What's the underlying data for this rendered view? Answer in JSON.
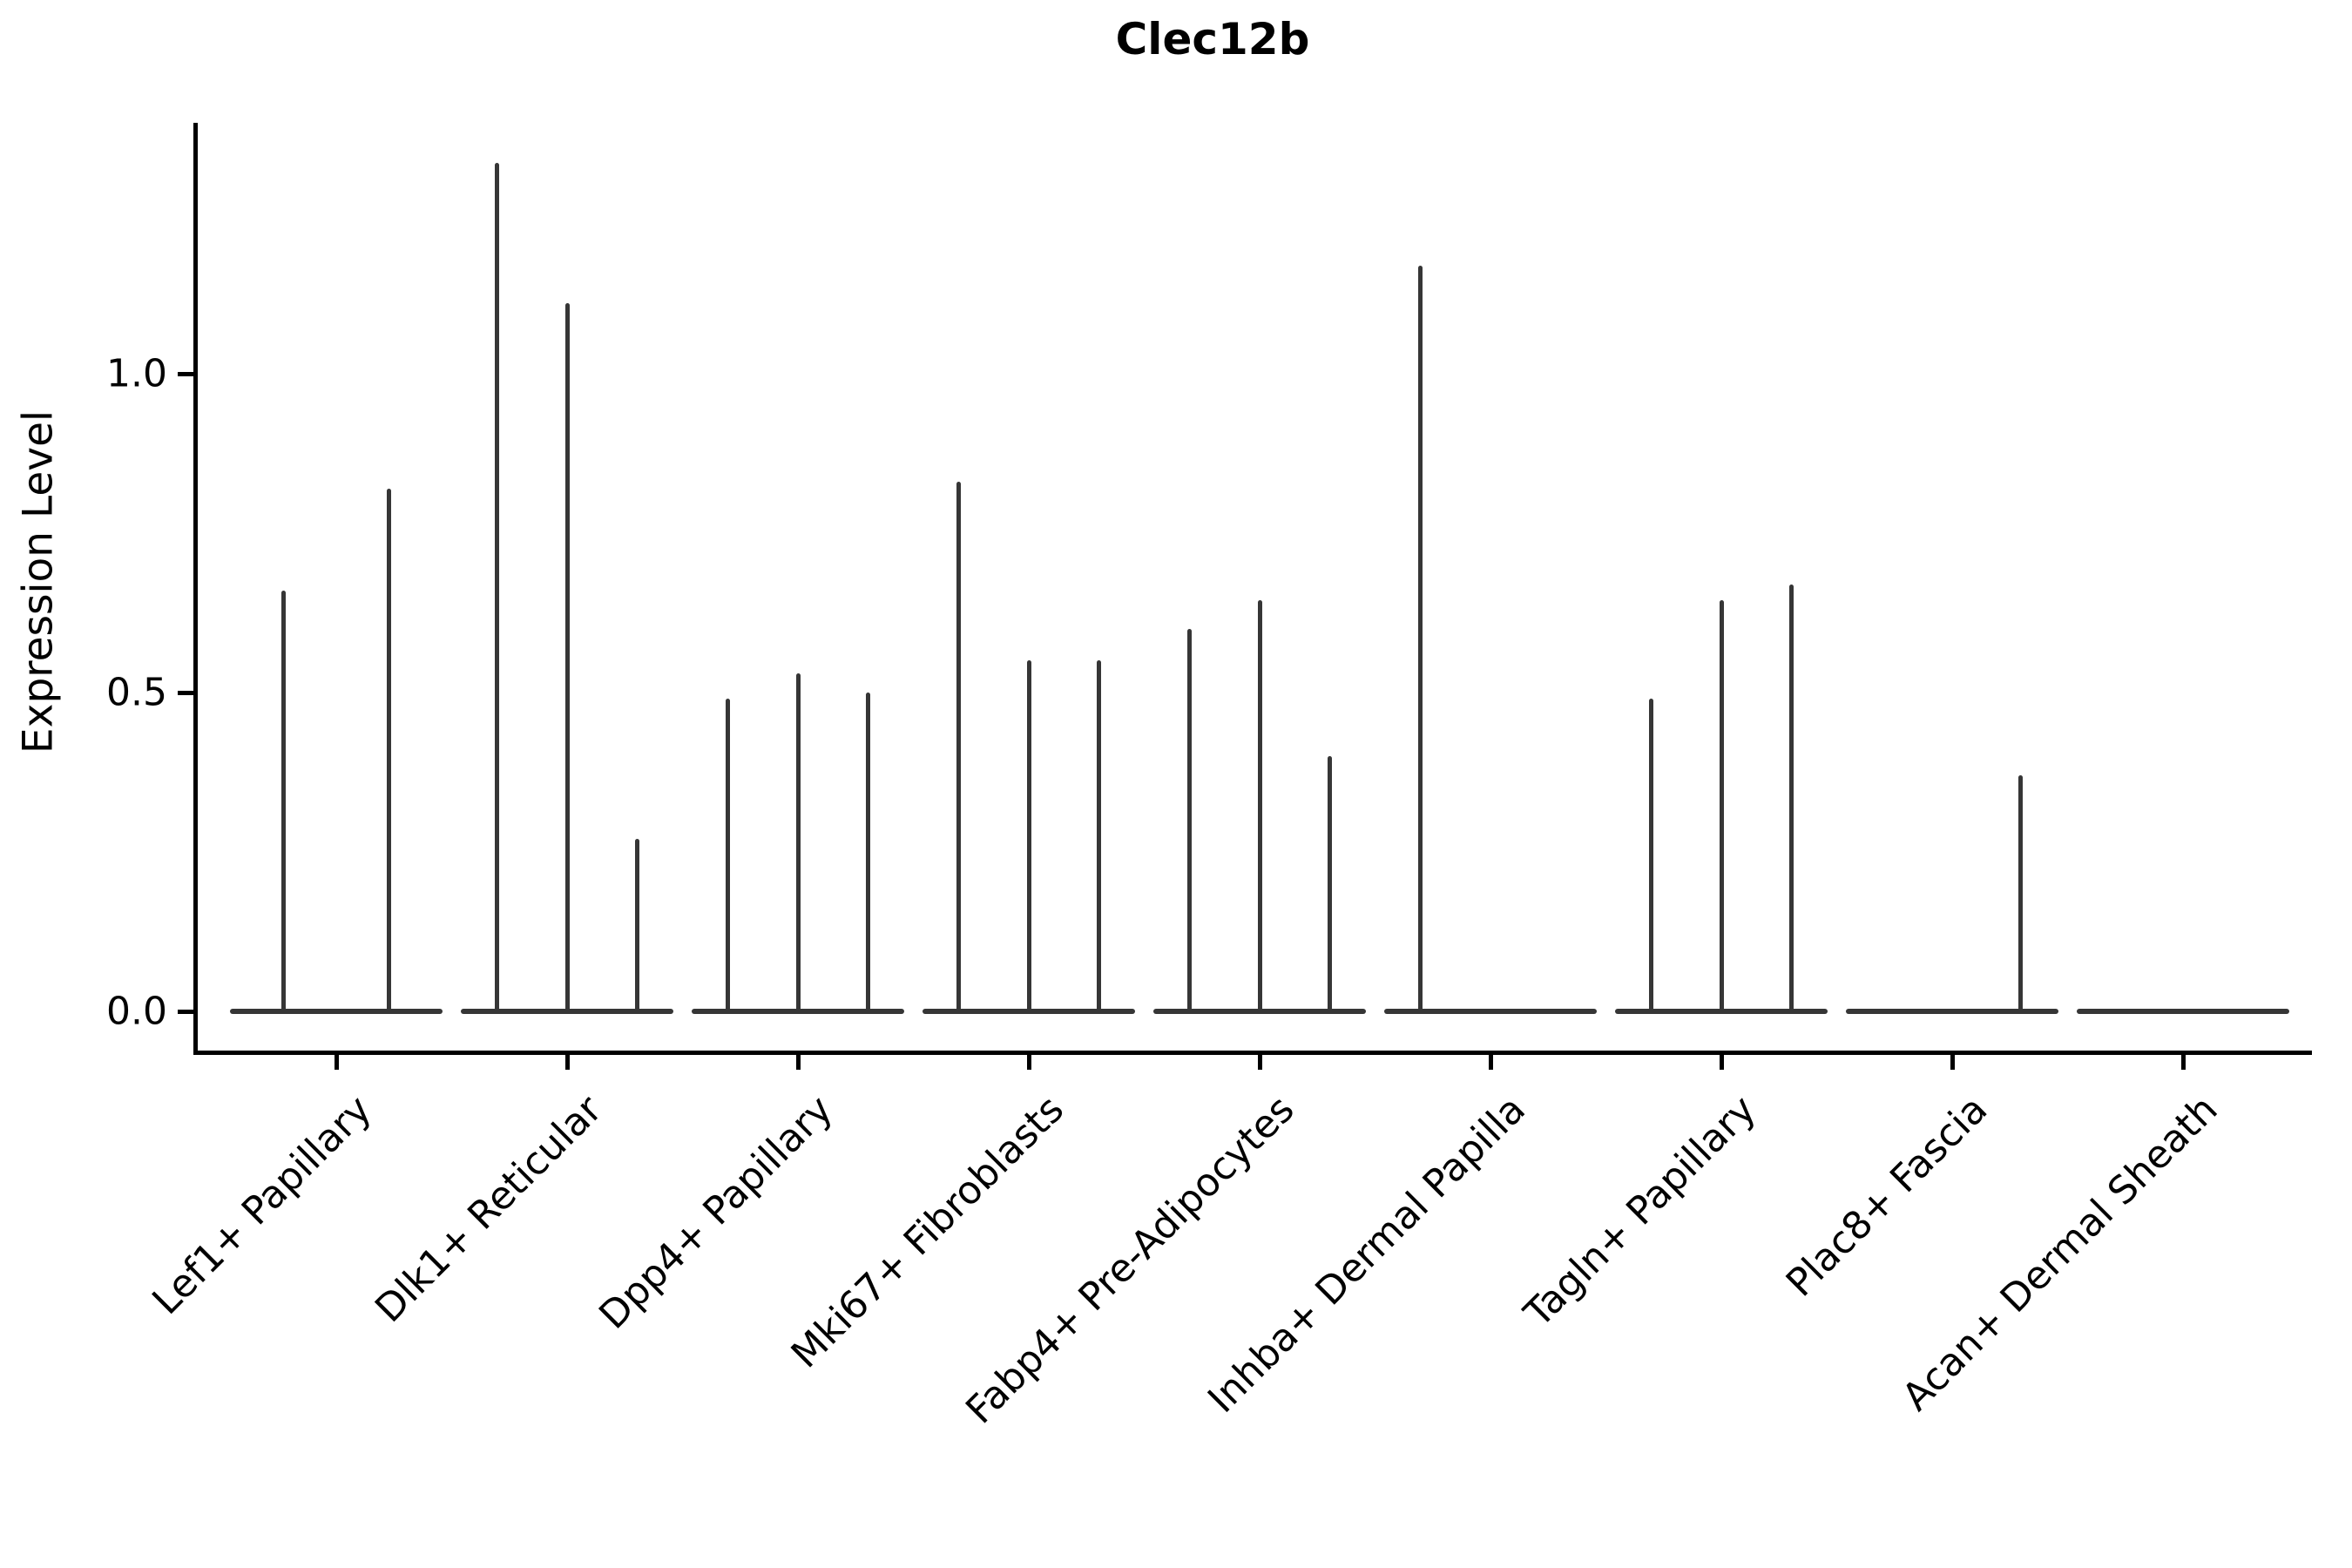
{
  "figure": {
    "title": "Clec12b",
    "background": "#ffffff"
  },
  "chart_data": {
    "type": "violin",
    "title": "Clec12b",
    "xlabel": "",
    "ylabel": "Expression Level",
    "ylim": [
      -0.07,
      1.39
    ],
    "grid": false,
    "legend": "none",
    "yticks": [
      {
        "label": "0.0",
        "value": 0.0
      },
      {
        "label": "0.5",
        "value": 0.5
      },
      {
        "label": "1.0",
        "value": 1.0
      }
    ],
    "categories": [
      "Lef1+ Papillary",
      "Dlk1+ Reticular",
      "Dpp4+ Papillary",
      "Mki67+ Fibroblasts",
      "Fabp4+ Pre-Adipocytes",
      "Inhba+ Dermal Papilla",
      "Tagln+ Papillary",
      "Plac8+ Fascia",
      "Acan+ Dermal Sheath"
    ],
    "series": [
      {
        "category": "Lef1+ Papillary",
        "spikes": [
          {
            "offset": -0.23,
            "max": 0.66
          },
          {
            "offset": 0.23,
            "max": 0.82
          }
        ]
      },
      {
        "category": "Dlk1+ Reticular",
        "spikes": [
          {
            "offset": -0.305,
            "max": 1.33
          },
          {
            "offset": 0.0,
            "max": 1.11
          },
          {
            "offset": 0.305,
            "max": 0.27
          }
        ]
      },
      {
        "category": "Dpp4+ Papillary",
        "spikes": [
          {
            "offset": -0.305,
            "max": 0.49
          },
          {
            "offset": 0.0,
            "max": 0.53
          },
          {
            "offset": 0.305,
            "max": 0.5
          }
        ]
      },
      {
        "category": "Mki67+ Fibroblasts",
        "spikes": [
          {
            "offset": -0.305,
            "max": 0.83
          },
          {
            "offset": 0.0,
            "max": 0.55
          },
          {
            "offset": 0.305,
            "max": 0.55
          }
        ]
      },
      {
        "category": "Fabp4+ Pre-Adipocytes",
        "spikes": [
          {
            "offset": -0.305,
            "max": 0.6
          },
          {
            "offset": 0.0,
            "max": 0.645
          },
          {
            "offset": 0.305,
            "max": 0.4
          }
        ]
      },
      {
        "category": "Inhba+ Dermal Papilla",
        "spikes": [
          {
            "offset": -0.305,
            "max": 1.17
          }
        ]
      },
      {
        "category": "Tagln+ Papillary",
        "spikes": [
          {
            "offset": -0.305,
            "max": 0.49
          },
          {
            "offset": 0.0,
            "max": 0.645
          },
          {
            "offset": 0.305,
            "max": 0.67
          }
        ]
      },
      {
        "category": "Plac8+ Fascia",
        "spikes": [
          {
            "offset": 0.295,
            "max": 0.37
          }
        ]
      },
      {
        "category": "Acan+ Dermal Sheath",
        "spikes": []
      }
    ],
    "baseline_half_width_fraction": 0.46,
    "colors": {
      "violin": "#363636",
      "spine": "#000000",
      "text": "#000000",
      "background": "#ffffff"
    }
  }
}
